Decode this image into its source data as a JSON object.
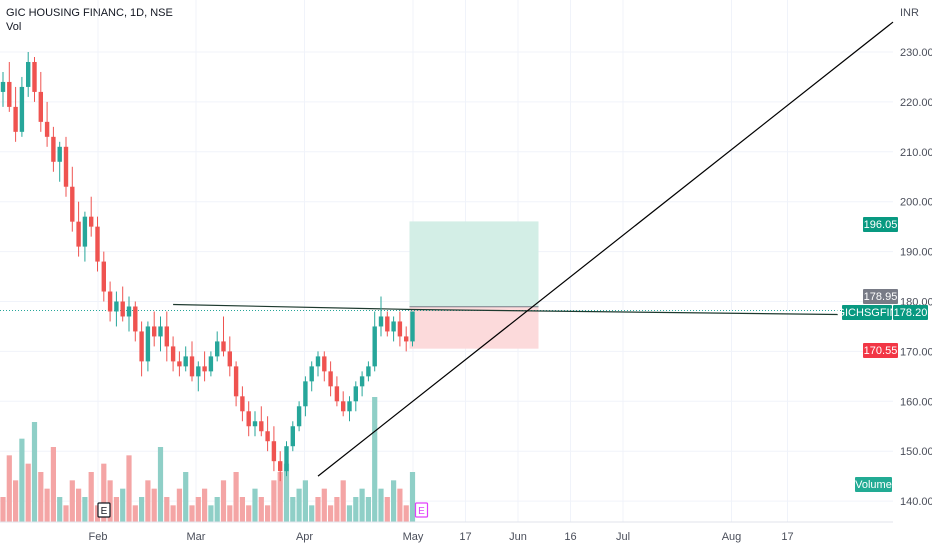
{
  "header": {
    "symbol_title": "GIC HOUSING FINANC, 1D, NSE",
    "indicator": "Vol"
  },
  "axis": {
    "currency": "INR",
    "volume_label": "Volume"
  },
  "price_tags": {
    "target": "196.05",
    "entry": "178.95",
    "symbol_name": "GICHSGFIN",
    "last": "178.20",
    "stop": "170.55"
  },
  "event_markers": [
    "E",
    "E"
  ],
  "colors": {
    "up": "#26a69a",
    "down": "#ef5350",
    "up_volume": "#8fcfc7",
    "down_volume": "#f4a5a5",
    "target_zone": "#d3eee6",
    "stop_zone": "#fcdadb",
    "trendline": "#000000",
    "grid": "#f0f3fa"
  },
  "chart_data": {
    "type": "candlestick",
    "title": "GIC HOUSING FINANC, 1D, NSE",
    "ylabel": "INR",
    "ylim": [
      136,
      236
    ],
    "yticks": [
      140,
      150,
      160,
      170,
      180,
      190,
      200,
      210,
      220,
      230
    ],
    "xtick_labels": [
      {
        "label": "Feb",
        "date": "2022-02-01"
      },
      {
        "label": "Mar",
        "date": "2022-03-01"
      },
      {
        "label": "Apr",
        "date": "2022-04-01"
      },
      {
        "label": "May",
        "date": "2022-05-02"
      },
      {
        "label": "17",
        "date": "2022-05-17"
      },
      {
        "label": "Jun",
        "date": "2022-06-01"
      },
      {
        "label": "16",
        "date": "2022-06-16"
      },
      {
        "label": "Jul",
        "date": "2022-07-01"
      },
      {
        "label": "Aug",
        "date": "2022-08-01"
      },
      {
        "label": "17",
        "date": "2022-08-17"
      }
    ],
    "candles": [
      [
        222,
        226,
        219,
        224
      ],
      [
        224,
        228,
        218,
        219
      ],
      [
        219,
        223,
        212,
        214
      ],
      [
        214,
        225,
        213,
        223
      ],
      [
        223,
        230,
        221,
        228
      ],
      [
        228,
        229,
        220,
        222
      ],
      [
        222,
        226,
        214,
        216
      ],
      [
        216,
        220,
        211,
        213
      ],
      [
        213,
        215,
        206,
        208
      ],
      [
        208,
        212,
        204,
        211
      ],
      [
        211,
        213,
        201,
        203
      ],
      [
        203,
        207,
        194,
        196
      ],
      [
        196,
        200,
        189,
        191
      ],
      [
        191,
        198,
        188,
        197
      ],
      [
        197,
        201,
        193,
        195
      ],
      [
        195,
        197,
        186,
        188
      ],
      [
        188,
        190,
        180,
        182
      ],
      [
        182,
        184,
        176,
        178
      ],
      [
        178,
        182,
        175,
        180
      ],
      [
        180,
        183,
        176,
        177
      ],
      [
        177,
        181,
        174,
        179
      ],
      [
        179,
        180,
        172,
        174
      ],
      [
        174,
        176,
        165,
        168
      ],
      [
        168,
        176,
        166,
        175
      ],
      [
        175,
        178,
        171,
        173
      ],
      [
        173,
        177,
        170,
        175
      ],
      [
        175,
        178,
        168,
        171
      ],
      [
        171,
        173,
        166,
        168
      ],
      [
        168,
        170,
        165,
        167
      ],
      [
        167,
        171,
        166,
        169
      ],
      [
        169,
        172,
        164,
        165
      ],
      [
        165,
        168,
        162,
        167
      ],
      [
        167,
        170,
        164,
        166
      ],
      [
        166,
        170,
        165,
        169
      ],
      [
        169,
        174,
        168,
        172
      ],
      [
        172,
        177,
        169,
        170
      ],
      [
        170,
        173,
        165,
        167
      ],
      [
        167,
        168,
        159,
        161
      ],
      [
        161,
        163,
        156,
        158
      ],
      [
        158,
        160,
        153,
        155
      ],
      [
        155,
        158,
        153,
        156
      ],
      [
        156,
        159,
        153,
        154
      ],
      [
        154,
        157,
        150,
        152
      ],
      [
        152,
        155,
        146,
        148
      ],
      [
        148,
        150,
        144,
        146
      ],
      [
        146,
        152,
        145,
        151
      ],
      [
        151,
        156,
        150,
        155
      ],
      [
        155,
        160,
        154,
        159
      ],
      [
        159,
        165,
        157,
        164
      ],
      [
        164,
        168,
        162,
        167
      ],
      [
        167,
        170,
        165,
        169
      ],
      [
        169,
        170,
        164,
        166
      ],
      [
        166,
        168,
        161,
        163
      ],
      [
        163,
        165,
        159,
        160
      ],
      [
        160,
        162,
        157,
        158
      ],
      [
        158,
        161,
        156,
        160
      ],
      [
        160,
        164,
        158,
        163
      ],
      [
        163,
        166,
        161,
        165
      ],
      [
        165,
        168,
        164,
        167
      ],
      [
        167,
        178,
        166,
        175
      ],
      [
        175,
        181,
        173,
        177
      ],
      [
        177,
        178,
        173,
        174
      ],
      [
        174,
        177,
        172,
        176
      ],
      [
        176,
        178,
        171,
        173
      ],
      [
        173,
        175,
        170,
        172
      ],
      [
        172,
        178,
        171,
        178
      ]
    ],
    "volume_bars": [
      [
        3,
        false
      ],
      [
        8,
        false
      ],
      [
        5,
        false
      ],
      [
        10,
        true
      ],
      [
        7,
        false
      ],
      [
        12,
        true
      ],
      [
        6,
        false
      ],
      [
        4,
        false
      ],
      [
        9,
        false
      ],
      [
        3,
        true
      ],
      [
        2,
        false
      ],
      [
        5,
        false
      ],
      [
        4,
        false
      ],
      [
        3,
        true
      ],
      [
        6,
        false
      ],
      [
        2,
        false
      ],
      [
        7,
        false
      ],
      [
        5,
        false
      ],
      [
        3,
        false
      ],
      [
        4,
        true
      ],
      [
        8,
        false
      ],
      [
        2,
        false
      ],
      [
        3,
        true
      ],
      [
        5,
        false
      ],
      [
        4,
        false
      ],
      [
        9,
        true
      ],
      [
        3,
        false
      ],
      [
        2,
        false
      ],
      [
        4,
        false
      ],
      [
        6,
        true
      ],
      [
        2,
        false
      ],
      [
        3,
        false
      ],
      [
        4,
        false
      ],
      [
        2,
        true
      ],
      [
        3,
        true
      ],
      [
        5,
        false
      ],
      [
        2,
        false
      ],
      [
        6,
        false
      ],
      [
        3,
        false
      ],
      [
        2,
        false
      ],
      [
        4,
        true
      ],
      [
        3,
        false
      ],
      [
        2,
        false
      ],
      [
        5,
        false
      ],
      [
        6,
        false
      ],
      [
        7,
        true
      ],
      [
        3,
        true
      ],
      [
        4,
        true
      ],
      [
        5,
        true
      ],
      [
        2,
        true
      ],
      [
        3,
        false
      ],
      [
        4,
        false
      ],
      [
        2,
        false
      ],
      [
        3,
        false
      ],
      [
        5,
        false
      ],
      [
        2,
        true
      ],
      [
        3,
        true
      ],
      [
        4,
        true
      ],
      [
        3,
        true
      ],
      [
        15,
        true
      ],
      [
        4,
        true
      ],
      [
        3,
        false
      ],
      [
        5,
        true
      ],
      [
        4,
        false
      ],
      [
        2,
        false
      ],
      [
        6,
        true
      ]
    ],
    "position": {
      "entry": 178.95,
      "target": 196.05,
      "stop": 170.55
    },
    "resistance_line": {
      "price": 178.2
    },
    "trendline": {
      "start_price": 145,
      "end_price": 236
    }
  }
}
